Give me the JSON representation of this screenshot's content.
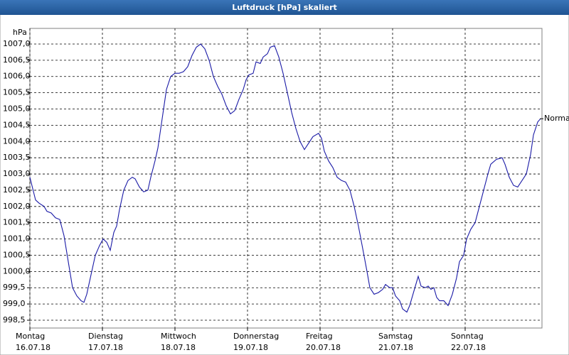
{
  "chart_data": {
    "type": "line",
    "title": "Luftdruck [hPa] skaliert",
    "y_label": "hPa",
    "xlim": [
      0,
      7.059
    ],
    "ylim": [
      998.26,
      1007.48
    ],
    "xticks": [
      {
        "value": 0,
        "label": [
          "Montag",
          "16.07.18"
        ]
      },
      {
        "value": 1,
        "label": [
          "Dienstag",
          "17.07.18"
        ]
      },
      {
        "value": 2,
        "label": [
          "Mittwoch",
          "18.07.18"
        ]
      },
      {
        "value": 3,
        "label": [
          "Donnerstag",
          "19.07.18"
        ]
      },
      {
        "value": 4,
        "label": [
          "Freitag",
          "20.07.18"
        ]
      },
      {
        "value": 5,
        "label": [
          "Samstag",
          "21.07.18"
        ]
      },
      {
        "value": 6,
        "label": [
          "Sonntag",
          "22.07.18"
        ]
      }
    ],
    "yticks": [
      {
        "value": 998.5,
        "label": "998,5"
      },
      {
        "value": 999.0,
        "label": "999,0"
      },
      {
        "value": 999.5,
        "label": "999,5"
      },
      {
        "value": 1000.0,
        "label": "1000,0"
      },
      {
        "value": 1000.5,
        "label": "1000,5"
      },
      {
        "value": 1001.0,
        "label": "1001,0"
      },
      {
        "value": 1001.5,
        "label": "1001,5"
      },
      {
        "value": 1002.0,
        "label": "1002,0"
      },
      {
        "value": 1002.5,
        "label": "1002,5"
      },
      {
        "value": 1003.0,
        "label": "1003,0"
      },
      {
        "value": 1003.5,
        "label": "1003,5"
      },
      {
        "value": 1004.0,
        "label": "1004,0"
      },
      {
        "value": 1004.5,
        "label": "1004,5"
      },
      {
        "value": 1005.0,
        "label": "1005,0"
      },
      {
        "value": 1005.5,
        "label": "1005,5"
      },
      {
        "value": 1006.0,
        "label": "1006,0"
      },
      {
        "value": 1006.5,
        "label": "1006,5"
      },
      {
        "value": 1007.0,
        "label": "1007,0"
      }
    ],
    "grid": true,
    "x": [
      0,
      0.078,
      0.127,
      0.196,
      0.235,
      0.294,
      0.353,
      0.412,
      0.471,
      0.529,
      0.588,
      0.647,
      0.706,
      0.745,
      0.784,
      0.843,
      0.902,
      0.961,
      1.01,
      1.059,
      1.108,
      1.157,
      1.196,
      1.235,
      1.294,
      1.353,
      1.412,
      1.451,
      1.51,
      1.569,
      1.627,
      1.667,
      1.725,
      1.765,
      1.824,
      1.882,
      1.941,
      2.0,
      2.059,
      2.118,
      2.176,
      2.235,
      2.294,
      2.353,
      2.412,
      2.471,
      2.529,
      2.588,
      2.647,
      2.706,
      2.765,
      2.824,
      2.882,
      2.941,
      2.98,
      3.02,
      3.078,
      3.118,
      3.176,
      3.216,
      3.275,
      3.314,
      3.373,
      3.431,
      3.49,
      3.549,
      3.608,
      3.667,
      3.725,
      3.784,
      3.843,
      3.902,
      3.98,
      4.02,
      4.059,
      4.118,
      4.176,
      4.235,
      4.294,
      4.353,
      4.412,
      4.471,
      4.529,
      4.588,
      4.647,
      4.686,
      4.745,
      4.804,
      4.863,
      4.902,
      4.961,
      5.0,
      5.039,
      5.098,
      5.137,
      5.196,
      5.235,
      5.294,
      5.353,
      5.392,
      5.451,
      5.49,
      5.529,
      5.569,
      5.608,
      5.647,
      5.706,
      5.765,
      5.824,
      5.882,
      5.922,
      5.98,
      6.02,
      6.078,
      6.137,
      6.196,
      6.255,
      6.314,
      6.353,
      6.431,
      6.51,
      6.549,
      6.608,
      6.667,
      6.725,
      6.784,
      6.843,
      6.902,
      6.941,
      7.0,
      7.039
    ],
    "series": [
      {
        "name": "Normal",
        "color": "#1a1aa6",
        "values": [
          1002.9,
          1002.2,
          1002.1,
          1002.0,
          1001.85,
          1001.8,
          1001.65,
          1001.6,
          1001.1,
          1000.3,
          999.5,
          999.25,
          999.1,
          999.05,
          999.3,
          999.9,
          1000.5,
          1000.8,
          1001.0,
          1000.9,
          1000.65,
          1001.2,
          1001.4,
          1001.9,
          1002.5,
          1002.8,
          1002.9,
          1002.85,
          1002.6,
          1002.45,
          1002.5,
          1002.9,
          1003.4,
          1003.8,
          1004.7,
          1005.6,
          1006.0,
          1006.1,
          1006.1,
          1006.15,
          1006.3,
          1006.65,
          1006.9,
          1007.0,
          1006.85,
          1006.5,
          1006.0,
          1005.7,
          1005.45,
          1005.1,
          1004.85,
          1004.95,
          1005.3,
          1005.6,
          1005.9,
          1006.05,
          1006.1,
          1006.45,
          1006.4,
          1006.6,
          1006.7,
          1006.9,
          1006.95,
          1006.6,
          1006.1,
          1005.5,
          1004.9,
          1004.4,
          1004.0,
          1003.75,
          1003.95,
          1004.15,
          1004.25,
          1004.1,
          1003.7,
          1003.4,
          1003.2,
          1002.9,
          1002.8,
          1002.75,
          1002.5,
          1002.0,
          1001.4,
          1000.7,
          1000.0,
          999.5,
          999.3,
          999.35,
          999.45,
          999.6,
          999.5,
          999.5,
          999.25,
          999.1,
          998.85,
          998.75,
          998.95,
          999.4,
          999.85,
          999.55,
          999.5,
          999.55,
          999.45,
          999.5,
          999.2,
          999.1,
          999.1,
          998.95,
          999.3,
          999.8,
          1000.3,
          1000.5,
          1001.0,
          1001.3,
          1001.5,
          1002.0,
          1002.5,
          1003.0,
          1003.3,
          1003.45,
          1003.5,
          1003.3,
          1002.9,
          1002.65,
          1002.6,
          1002.8,
          1003.0,
          1003.6,
          1004.2,
          1004.6,
          1004.7
        ]
      }
    ]
  }
}
